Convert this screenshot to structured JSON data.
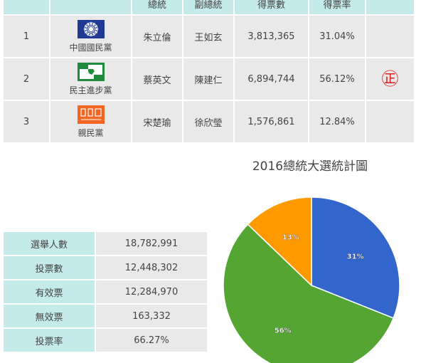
{
  "candidates": {
    "headers": [
      "",
      "",
      "總統",
      "副總統",
      "得票數",
      "得票率",
      ""
    ],
    "rows": [
      {
        "no": "1",
        "party": "中國國民黨",
        "logo": "kmt-logo",
        "president": "朱立倫",
        "vice": "王如玄",
        "votes": "3,813,365",
        "rate": "31.04%",
        "winner": ""
      },
      {
        "no": "2",
        "party": "民主進步黨",
        "logo": "dpp-logo",
        "president": "蔡英文",
        "vice": "陳建仁",
        "votes": "6,894,744",
        "rate": "56.12%",
        "winner": "㊣"
      },
      {
        "no": "3",
        "party": "親民黨",
        "logo": "pfp-logo",
        "president": "宋楚瑜",
        "vice": "徐欣瑩",
        "votes": "1,576,861",
        "rate": "12.84%",
        "winner": ""
      }
    ]
  },
  "stats": {
    "rows": [
      {
        "label": "選舉人數",
        "value": "18,782,991"
      },
      {
        "label": "投票數",
        "value": "12,448,302"
      },
      {
        "label": "有效票",
        "value": "12,284,970"
      },
      {
        "label": "無效票",
        "value": "163,332"
      },
      {
        "label": "投票率",
        "value": "66.27%"
      }
    ]
  },
  "colors": {
    "kmt": "#3366cc",
    "dpp": "#55a532",
    "pfp": "#ff9900",
    "header_bg": "#c4eae9",
    "cell_bg": "#e9e9e9",
    "winner": "#e02020",
    "kmt_logo_blue": "#1f3a93",
    "dpp_logo_green": "#1f8a3c",
    "pfp_logo_orange": "#f26522"
  },
  "chart_data": {
    "type": "pie",
    "title": "2016總統大選統計圖",
    "start_angle": 0,
    "slices": [
      {
        "value": 31.04,
        "label": "31%",
        "color": "#3366cc"
      },
      {
        "value": 56.12,
        "label": "56%",
        "color": "#55a532"
      },
      {
        "value": 12.84,
        "label": "13%",
        "color": "#ff9900"
      }
    ]
  }
}
